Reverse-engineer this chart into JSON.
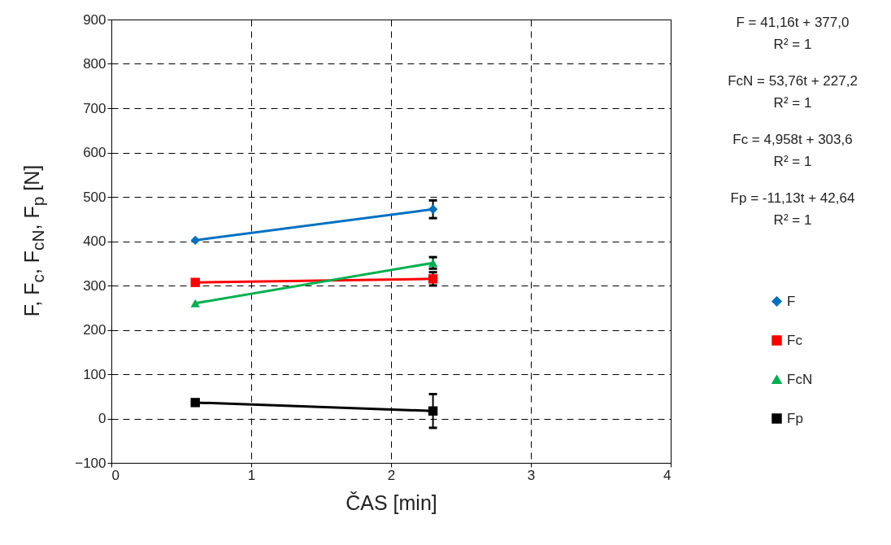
{
  "chart_data": {
    "type": "line",
    "xlabel": "ČAS [min]",
    "ylabel": "F, F$_{c}$, F$_{cN}$, F$_{p}$ [N]",
    "xlim": [
      0,
      4
    ],
    "xticks": [
      0,
      1,
      2,
      3,
      4
    ],
    "ylim": [
      -100,
      900
    ],
    "yticks": [
      -100,
      0,
      100,
      200,
      300,
      400,
      500,
      600,
      700,
      800,
      900
    ],
    "x": [
      0.6,
      2.3
    ],
    "grid": true,
    "legend": "right",
    "line_style": "solid",
    "annotations": [
      "F = 41,16t + 377,0\nR² = 1",
      "FcN = 53,76t + 227,2\nR² = 1",
      "Fc = 4,958t + 303,6\nR² = 1",
      "Fp = -11,13t + 42,64\nR² = 1"
    ],
    "series": [
      {
        "name": "F",
        "color": "#0070c0",
        "marker": "diamond",
        "values": [
          402,
          472
        ],
        "errors": [
          null,
          20
        ]
      },
      {
        "name": "Fc",
        "color": "#ff0000",
        "marker": "square",
        "values": [
          307,
          315
        ],
        "errors": [
          null,
          15
        ]
      },
      {
        "name": "FcN",
        "color": "#00b050",
        "marker": "triangle",
        "values": [
          260,
          351
        ],
        "errors": [
          null,
          13
        ]
      },
      {
        "name": "Fp",
        "color": "#000000",
        "marker": "square",
        "values": [
          36,
          17
        ],
        "errors": [
          null,
          38
        ]
      }
    ]
  }
}
